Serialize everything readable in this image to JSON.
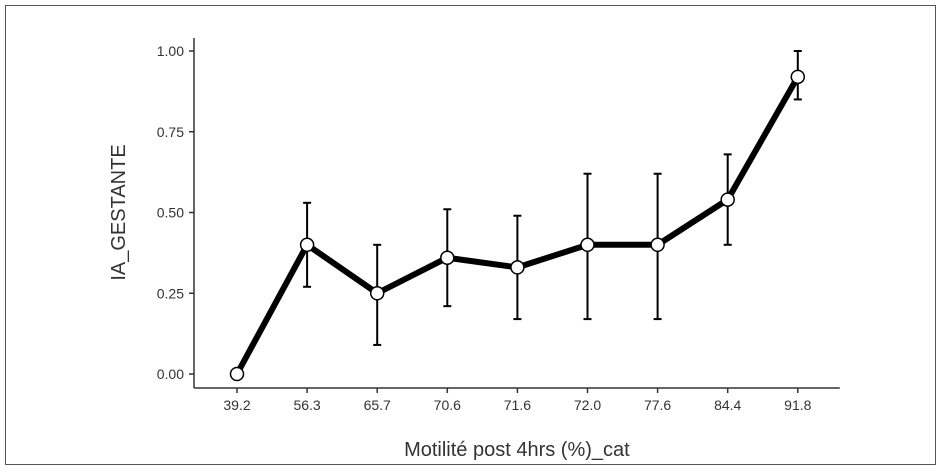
{
  "chart_data": {
    "type": "line",
    "xlabel": "Motilité post 4hrs (%)_cat",
    "ylabel": "IA_GESTANTE",
    "ylim": [
      0,
      1
    ],
    "yticks": [
      "0.00",
      "0.25",
      "0.50",
      "0.75",
      "1.00"
    ],
    "categories": [
      "39.2",
      "56.3",
      "65.7",
      "70.6",
      "71.6",
      "72.0",
      "77.6",
      "84.4",
      "91.8"
    ],
    "values": [
      0.0,
      0.4,
      0.25,
      0.36,
      0.33,
      0.4,
      0.4,
      0.54,
      0.92
    ],
    "error_low": [
      0.0,
      0.27,
      0.09,
      0.21,
      0.17,
      0.17,
      0.17,
      0.4,
      0.85
    ],
    "error_high": [
      0.0,
      0.53,
      0.4,
      0.51,
      0.49,
      0.62,
      0.62,
      0.68,
      1.0
    ],
    "grid": false,
    "legend": "none",
    "colors": {
      "line": "#000000",
      "marker_fill": "#ffffff",
      "axis": "#333333"
    }
  }
}
